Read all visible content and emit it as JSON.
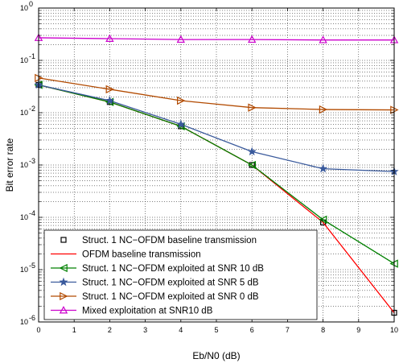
{
  "chart_data": {
    "type": "line",
    "xlabel": "Eb/N0 (dB)",
    "ylabel": "Bit error rate",
    "xlim": [
      0,
      10
    ],
    "ylim": [
      1e-06,
      1
    ],
    "yscale": "log",
    "grid": true,
    "legend_position": "bottom-left",
    "x_ticks": [
      "0",
      "1",
      "2",
      "3",
      "4",
      "5",
      "6",
      "7",
      "8",
      "9",
      "10"
    ],
    "y_ticks": [
      {
        "mant": "10",
        "exp": "-6"
      },
      {
        "mant": "10",
        "exp": "-5"
      },
      {
        "mant": "10",
        "exp": "-4"
      },
      {
        "mant": "10",
        "exp": "-3"
      },
      {
        "mant": "10",
        "exp": "-2"
      },
      {
        "mant": "10",
        "exp": "-1"
      },
      {
        "mant": "10",
        "exp": "0"
      }
    ],
    "series": [
      {
        "name": "Struct. 1 NC−OFDM baseline transmission",
        "color": "#000000",
        "marker": "square",
        "line": false,
        "x": [
          0,
          2,
          4,
          6,
          8,
          10
        ],
        "y": [
          0.034,
          0.016,
          0.0055,
          0.001,
          8e-05,
          1.5e-06
        ]
      },
      {
        "name": "OFDM baseline transmission",
        "color": "#ff0000",
        "marker": "none",
        "line": true,
        "x": [
          0,
          2,
          4,
          6,
          8,
          10
        ],
        "y": [
          0.034,
          0.016,
          0.0055,
          0.001,
          8e-05,
          1.5e-06
        ]
      },
      {
        "name": "Struct. 1 NC−OFDM exploited at SNR 10 dB",
        "color": "#008000",
        "marker": "triangle-left",
        "line": true,
        "x": [
          0,
          2,
          4,
          6,
          8,
          10
        ],
        "y": [
          0.034,
          0.016,
          0.0055,
          0.001,
          9e-05,
          1.3e-05
        ]
      },
      {
        "name": "Struct. 1 NC−OFDM exploited at SNR 5 dB",
        "color": "#3a5a9c",
        "marker": "star",
        "line": true,
        "x": [
          0,
          2,
          4,
          6,
          8,
          10
        ],
        "y": [
          0.034,
          0.017,
          0.006,
          0.0018,
          0.00085,
          0.00075
        ]
      },
      {
        "name": "Struct. 1 NC−OFDM exploited at SNR 0 dB",
        "color": "#b24a00",
        "marker": "triangle-right",
        "line": true,
        "x": [
          0,
          2,
          4,
          6,
          8,
          10
        ],
        "y": [
          0.046,
          0.028,
          0.017,
          0.0125,
          0.0115,
          0.0113
        ]
      },
      {
        "name": "Mixed exploitation at SNR10 dB",
        "color": "#cc00cc",
        "marker": "triangle-up",
        "line": true,
        "x": [
          0,
          2,
          4,
          6,
          8,
          10
        ],
        "y": [
          0.27,
          0.26,
          0.25,
          0.25,
          0.245,
          0.245
        ]
      }
    ]
  }
}
